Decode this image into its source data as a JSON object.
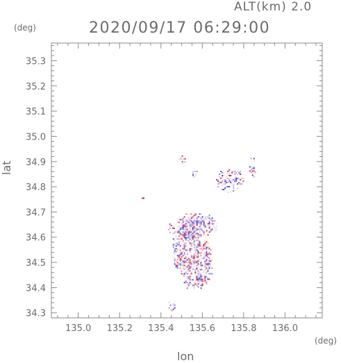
{
  "header": {
    "altitude_label": "ALT(km)  2.0",
    "datetime": "2020/09/17 06:29:00"
  },
  "axes": {
    "x_unit": "(deg)",
    "y_unit": "(deg)",
    "x_label": "lon",
    "y_label": "lat",
    "x_ticks": [
      "135.0",
      "135.2",
      "135.4",
      "135.6",
      "135.8",
      "136.0"
    ],
    "y_ticks": [
      "34.3",
      "34.4",
      "34.5",
      "34.6",
      "34.7",
      "34.8",
      "34.9",
      "35.0",
      "35.1",
      "35.2",
      "35.3"
    ]
  },
  "chart_data": {
    "type": "heatmap",
    "xlabel": "lon",
    "ylabel": "lat",
    "xlim": [
      134.87,
      136.18
    ],
    "ylim": [
      34.28,
      35.37
    ],
    "x_ticks": [
      135.0,
      135.2,
      135.4,
      135.6,
      135.8,
      136.0
    ],
    "y_ticks": [
      34.3,
      34.4,
      34.5,
      34.6,
      34.7,
      34.8,
      34.9,
      35.0,
      35.1,
      35.2,
      35.3
    ],
    "grid": false,
    "colors": {
      "positive": "#e23b3b",
      "negative": "#4a4ad8",
      "frame": "#8a8a8a",
      "text": "#6b6b6b"
    },
    "clusters": [
      {
        "lon": 135.52,
        "lat": 34.57,
        "rlon": 0.07,
        "rlat": 0.13,
        "density": 0.6
      },
      {
        "lon": 135.6,
        "lat": 34.5,
        "rlon": 0.05,
        "rlat": 0.09,
        "density": 0.55
      },
      {
        "lon": 135.58,
        "lat": 34.65,
        "rlon": 0.09,
        "rlat": 0.05,
        "density": 0.5
      },
      {
        "lon": 135.45,
        "lat": 34.64,
        "rlon": 0.03,
        "rlat": 0.02,
        "density": 0.45
      },
      {
        "lon": 135.73,
        "lat": 34.83,
        "rlon": 0.07,
        "rlat": 0.05,
        "density": 0.45
      },
      {
        "lon": 135.84,
        "lat": 34.88,
        "rlon": 0.02,
        "rlat": 0.04,
        "density": 0.5
      },
      {
        "lon": 135.5,
        "lat": 34.91,
        "rlon": 0.02,
        "rlat": 0.02,
        "density": 0.4
      },
      {
        "lon": 135.56,
        "lat": 34.86,
        "rlon": 0.015,
        "rlat": 0.02,
        "density": 0.35
      },
      {
        "lon": 135.55,
        "lat": 34.42,
        "rlon": 0.06,
        "rlat": 0.03,
        "density": 0.35
      },
      {
        "lon": 135.45,
        "lat": 34.33,
        "rlon": 0.02,
        "rlat": 0.02,
        "density": 0.4
      },
      {
        "lon": 135.31,
        "lat": 34.76,
        "rlon": 0.005,
        "rlat": 0.005,
        "density": 0.9
      }
    ]
  }
}
